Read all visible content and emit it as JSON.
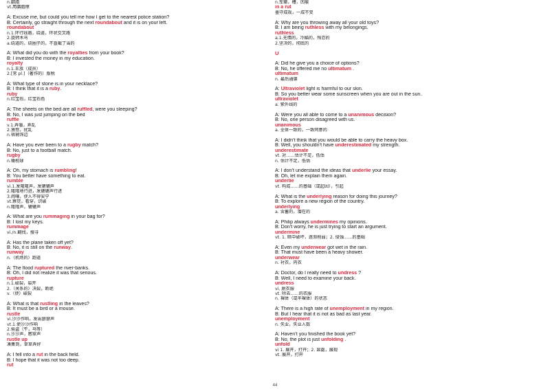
{
  "page_number": "44",
  "columns": [
    [
      {
        "k": "cn",
        "t": "n.胭脂"
      },
      {
        "k": "cn",
        "t": "vt.用胭脂擦"
      },
      {
        "k": "sp"
      },
      {
        "k": "t",
        "t": "A: Excuse me, but could you tell me how I get to the nearest police station?"
      },
      {
        "k": "t",
        "before": "B: Certainly, go straight through the next ",
        "hl": "roundabout",
        "after": " and it is on your left."
      },
      {
        "k": "h",
        "t": "roundabout"
      },
      {
        "k": "cn",
        "t": "n.1.环行线路，绕道，环状交叉路"
      },
      {
        "k": "cn",
        "t": "2.旋转木马"
      },
      {
        "k": "cn",
        "t": "a.绕道的，绕圈子的，不直截了当的"
      },
      {
        "k": "sp"
      },
      {
        "k": "t",
        "before": "A: What did you do with the ",
        "hl": "royalties",
        "after": " from your book?"
      },
      {
        "k": "t",
        "t": "B: I invested the money in my education."
      },
      {
        "k": "h",
        "t": "royalty"
      },
      {
        "k": "cn",
        "t": "n.1.王族（成员）"
      },
      {
        "k": "cn",
        "t": "2.[常 pl.]（著作的）版税"
      },
      {
        "k": "sp"
      },
      {
        "k": "t",
        "t": "A: What type of stone is in your necklace?"
      },
      {
        "k": "t",
        "before": "B: I think that it is a ",
        "hl": "ruby",
        "after": "."
      },
      {
        "k": "h",
        "t": "ruby"
      },
      {
        "k": "cn",
        "t": "n.红宝石，红宝石色"
      },
      {
        "k": "sp"
      },
      {
        "k": "t",
        "before": "A: The sheets on the bed are all ",
        "hl": "ruffled",
        "after": ", were you sleeping?"
      },
      {
        "k": "t",
        "t": "B: No, I was just jumping on the bed"
      },
      {
        "k": "h",
        "t": "ruffle"
      },
      {
        "k": "cn",
        "t": "v.1.弄皱，弄乱"
      },
      {
        "k": "cn",
        "t": "2.激怒，扰乱"
      },
      {
        "k": "cn",
        "t": "n.褶裥饰边"
      },
      {
        "k": "sp"
      },
      {
        "k": "t",
        "before": "A: Have you ever been to a ",
        "hl": "rugby",
        "after": " match?"
      },
      {
        "k": "t",
        "t": "B: No, just to a football match."
      },
      {
        "k": "h",
        "t": "rugby"
      },
      {
        "k": "cn",
        "t": "n.橄榄球"
      },
      {
        "k": "sp"
      },
      {
        "k": "t",
        "before": "A: Oh, my stomach is ",
        "hl": "rumbling",
        "after": "!"
      },
      {
        "k": "t",
        "t": "B: You better have something to eat."
      },
      {
        "k": "h",
        "t": "rumble"
      },
      {
        "k": "cn",
        "t": "vi.1.发隆隆声，发辘辘声"
      },
      {
        "k": "cn",
        "t": "2.隆隆地行进，发辘辘声行进"
      },
      {
        "k": "cn",
        "t": "3.闹嚷，使人不得安宁"
      },
      {
        "k": "cn",
        "t": "vt.察觉，看穿，识破"
      },
      {
        "k": "cn",
        "t": "n.隆隆声，辘辘声"
      },
      {
        "k": "sp"
      },
      {
        "k": "t",
        "before": "A: What are you ",
        "hl": "rummaging",
        "after": " in your bag for?"
      },
      {
        "k": "t",
        "t": "B: I lost my keys."
      },
      {
        "k": "h",
        "t": "rummage"
      },
      {
        "k": "cn",
        "t": "vi./n.翻找，搜寻"
      },
      {
        "k": "sp"
      },
      {
        "k": "t",
        "t": "A: Has the plane taken off yet?"
      },
      {
        "k": "t",
        "before": "B: No, it is still on the ",
        "hl": "runway",
        "after": "."
      },
      {
        "k": "h",
        "t": "runway"
      },
      {
        "k": "cn",
        "t": "n.（机场的）跑道"
      },
      {
        "k": "sp"
      },
      {
        "k": "t",
        "before": "A: The flood ",
        "hl": "ruptured",
        "after": " the river-banks."
      },
      {
        "k": "t",
        "t": "B: Oh, I did not realize it was that serious."
      },
      {
        "k": "h",
        "t": "rupture"
      },
      {
        "k": "cn",
        "t": "n.1.破裂，裂开"
      },
      {
        "k": "cn",
        "t": "2.（关系的）决裂，断绝"
      },
      {
        "k": "cn",
        "t": "v.（使）破裂"
      },
      {
        "k": "sp"
      },
      {
        "k": "t",
        "before": "A: What is that ",
        "hl": "rustling",
        "after": " in the leaves?"
      },
      {
        "k": "t",
        "t": "B: It must be a bird or a mouse."
      },
      {
        "k": "h",
        "t": "rustle"
      },
      {
        "k": "cn",
        "t": "vi.沙沙作响，发出瑟瑟声"
      },
      {
        "k": "cn",
        "t": "vt.1.使沙沙作响"
      },
      {
        "k": "cn",
        "t": "2.偷盗（牛，马等）"
      },
      {
        "k": "cn",
        "t": "n.沙沙声，窸窣声"
      },
      {
        "k": "h",
        "t": "rustle up"
      },
      {
        "k": "cn",
        "t": "凑集到，草草弄好"
      },
      {
        "k": "sp"
      },
      {
        "k": "t",
        "before": "A: I fell into a ",
        "hl": "rut",
        "after": " in the back field."
      },
      {
        "k": "t",
        "t": "B: I hope that it was not too deep."
      },
      {
        "k": "h",
        "t": "rut"
      }
    ],
    [
      {
        "k": "cn",
        "t": "n.车辙，槽，凹痕"
      },
      {
        "k": "h",
        "t": "in a rut"
      },
      {
        "k": "cn",
        "t": "墨守成规，一成不变"
      },
      {
        "k": "sp"
      },
      {
        "k": "t",
        "t": "A: Why are you throwing away all your old toys?"
      },
      {
        "k": "t",
        "before": "B: I am being ",
        "hl": "ruthless",
        "after": " with my belongings."
      },
      {
        "k": "h",
        "t": "ruthless"
      },
      {
        "k": "cn",
        "t": "a.1.无情的，冷酷的，残忍的"
      },
      {
        "k": "cn",
        "t": "2.坚决的，彻底的"
      },
      {
        "k": "sp"
      },
      {
        "k": "L",
        "t": "U"
      },
      {
        "k": "sp"
      },
      {
        "k": "t",
        "t": "A: Did he give you a choice of options?"
      },
      {
        "k": "t",
        "before": "B: No, he offered me no ",
        "hl": "ultimatum",
        "after": " ."
      },
      {
        "k": "h",
        "t": "ultimatum"
      },
      {
        "k": "cn",
        "t": "n. 最后通牒"
      },
      {
        "k": "sp"
      },
      {
        "k": "t",
        "before": "A: ",
        "hl": "Ultraviolet",
        "after": " light is harmful to our skin."
      },
      {
        "k": "t",
        "t": "B: So you better wear some sunscreen when you are out in the sun."
      },
      {
        "k": "h",
        "t": "ultraviolet"
      },
      {
        "k": "cn",
        "t": "a. 紫外线的"
      },
      {
        "k": "sp"
      },
      {
        "k": "t",
        "before": "A: Were you all able to come to a ",
        "hl": "unanimous",
        "after": " decision?"
      },
      {
        "k": "t",
        "t": "B: No, one person disagreed with us."
      },
      {
        "k": "h",
        "t": "unanimous"
      },
      {
        "k": "cn",
        "t": "a. 全体一致的，一致同意的"
      },
      {
        "k": "sp"
      },
      {
        "k": "t",
        "t": "A: I didn’t think that you would be able to carry the heavy box."
      },
      {
        "k": "t",
        "before": "B: Well, you shouldn’t have ",
        "hl": "underestimated",
        "after": " my strength."
      },
      {
        "k": "h",
        "t": "underestimate"
      },
      {
        "k": "cn",
        "t": "vt. 对……估计不足，低估"
      },
      {
        "k": "cn",
        "t": "n. 估计不足，低估"
      },
      {
        "k": "sp"
      },
      {
        "k": "t",
        "before": "A: I don’t understand the ideas that ",
        "hl": "underlie",
        "after": " your essay."
      },
      {
        "k": "t",
        "t": "B: Oh, let me explain them again."
      },
      {
        "k": "h",
        "t": "underlie"
      },
      {
        "k": "cn",
        "t": "vt. 构成……的基础（或起因），引起"
      },
      {
        "k": "sp"
      },
      {
        "k": "t",
        "before": "A: What is the ",
        "hl": "underlying",
        "after": " reason for doing this journey?"
      },
      {
        "k": "t",
        "t": "B: To explore a new region of the country."
      },
      {
        "k": "h",
        "t": "underlying"
      },
      {
        "k": "cn",
        "t": "a. 含蓄的，潜在的"
      },
      {
        "k": "sp"
      },
      {
        "k": "t",
        "before": "A: Philip always ",
        "hl": "undermines",
        "after": " my opinions."
      },
      {
        "k": "t",
        "t": "B: Don’t worry, he is just trying to start an argument."
      },
      {
        "k": "h",
        "t": "undermine"
      },
      {
        "k": "cn",
        "t": "vt. 1. 暗中破坏，逐渐削弱；2. 侵蚀……的基础"
      },
      {
        "k": "sp"
      },
      {
        "k": "t",
        "before": "A: Even my ",
        "hl": "underwear",
        "after": " got wet in the rain."
      },
      {
        "k": "t",
        "t": "B: That must have been a heavy shower."
      },
      {
        "k": "h",
        "t": "underwear"
      },
      {
        "k": "cn",
        "t": "n. 衬衣，内衣"
      },
      {
        "k": "sp"
      },
      {
        "k": "t",
        "before": "A: Doctor, do I really need to ",
        "hl": "undress",
        "after": " ?"
      },
      {
        "k": "t",
        "t": "B: Well, I need to examine your back."
      },
      {
        "k": "h",
        "t": "undress"
      },
      {
        "k": "cn",
        "t": "vi. 脱衣服"
      },
      {
        "k": "cn",
        "t": "vt. 除去……的衣服"
      },
      {
        "k": "cn",
        "t": "n. 裸体（或半裸体）的状态"
      },
      {
        "k": "sp"
      },
      {
        "k": "t",
        "before": "A: There is a high rate of ",
        "hl": "unemployment",
        "after": " in my region."
      },
      {
        "k": "t",
        "t": "B: But I hear that it is not as bad as last year."
      },
      {
        "k": "h",
        "t": "unemployment"
      },
      {
        "k": "cn",
        "t": "n. 失业，失业人数"
      },
      {
        "k": "sp"
      },
      {
        "k": "t",
        "t": "A: Haven’t you finished the book yet?"
      },
      {
        "k": "t",
        "before": "B: No, the plot is just ",
        "hl": "unfolding",
        "after": " ."
      },
      {
        "k": "h",
        "t": "unfold"
      },
      {
        "k": "cn",
        "t": "vi 1. 展开，打开；2. 显露，展现"
      },
      {
        "k": "cn",
        "t": "vt. 展开，打开"
      }
    ]
  ]
}
